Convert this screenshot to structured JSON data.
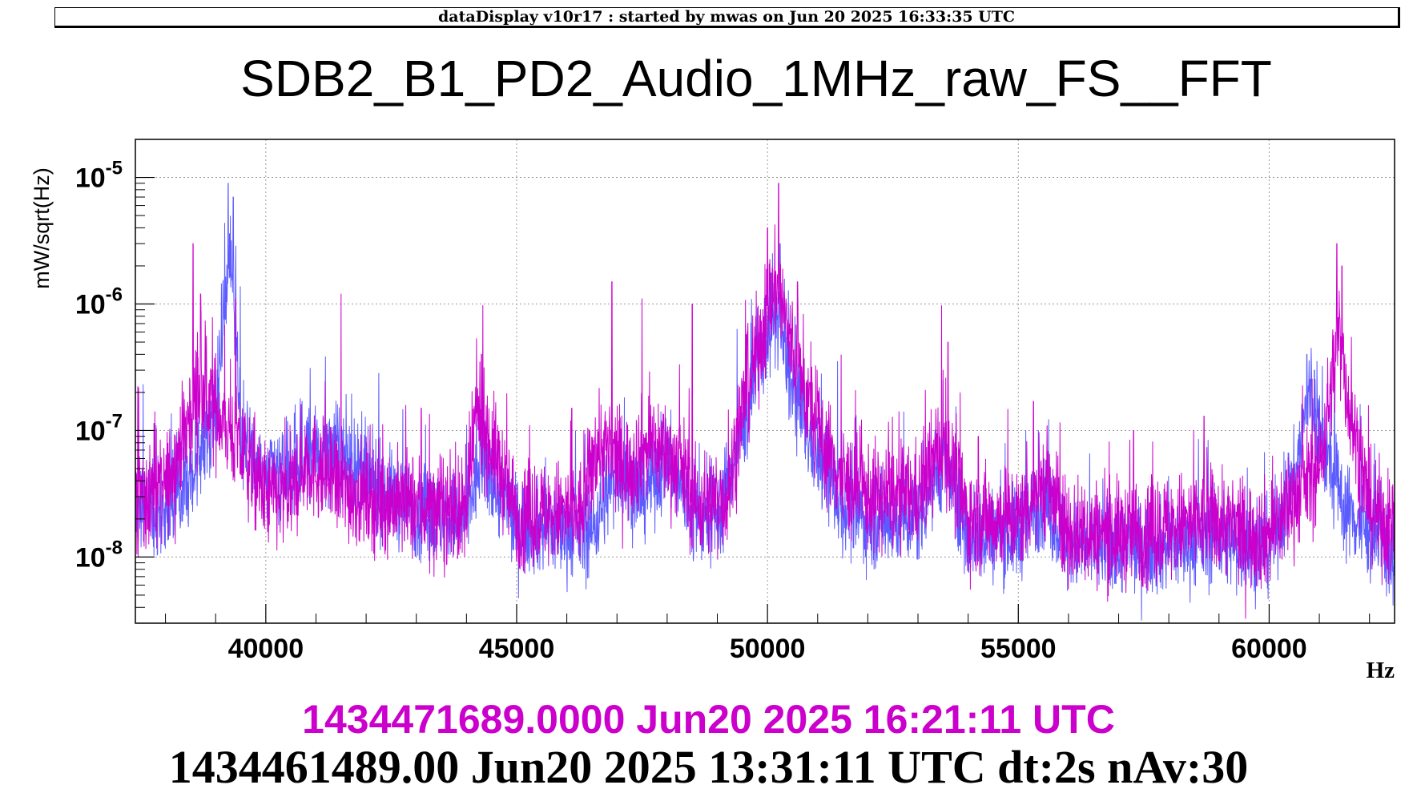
{
  "header": {
    "text": "dataDisplay v10r17 : started by mwas on Jun 20 2025 16:33:35 UTC"
  },
  "chart_data": {
    "type": "line",
    "title": "SDB2_B1_PD2_Audio_1MHz_raw_FS__FFT",
    "xlabel": "Hz",
    "ylabel": "mW/sqrt(Hz)",
    "xlim": [
      37400,
      62500
    ],
    "ylim": [
      3e-09,
      2e-05
    ],
    "yscale": "log",
    "grid": true,
    "xticks": [
      40000,
      45000,
      50000,
      55000,
      60000
    ],
    "xtick_labels": [
      "40000",
      "45000",
      "50000",
      "55000",
      "60000"
    ],
    "yticks": [
      1e-08,
      1e-07,
      1e-06,
      1e-05
    ],
    "ytick_base": "10",
    "ytick_exponents": [
      "-8",
      "-7",
      "-6",
      "-5"
    ],
    "series": [
      {
        "color": "#5b5bff",
        "noise_db": 0.35,
        "envelope": [
          [
            37400,
            2.3e-08
          ],
          [
            38000,
            2.6e-08
          ],
          [
            38500,
            4e-08
          ],
          [
            39000,
            1.5e-07
          ],
          [
            39200,
            1.2e-06
          ],
          [
            39300,
            3e-06
          ],
          [
            39500,
            1e-07
          ],
          [
            40000,
            4e-08
          ],
          [
            40500,
            4.5e-08
          ],
          [
            41000,
            7e-08
          ],
          [
            41400,
            7e-08
          ],
          [
            42000,
            4e-08
          ],
          [
            42500,
            3e-08
          ],
          [
            43000,
            2.4e-08
          ],
          [
            43500,
            2e-08
          ],
          [
            44000,
            2e-08
          ],
          [
            44300,
            6e-08
          ],
          [
            44700,
            3e-08
          ],
          [
            45000,
            1.8e-08
          ],
          [
            46000,
            1.6e-08
          ],
          [
            46500,
            1.6e-08
          ],
          [
            47000,
            5e-08
          ],
          [
            47500,
            3e-08
          ],
          [
            48000,
            6e-08
          ],
          [
            48500,
            2e-08
          ],
          [
            49000,
            2e-08
          ],
          [
            49500,
            1e-07
          ],
          [
            50000,
            6e-07
          ],
          [
            50200,
            8e-07
          ],
          [
            50500,
            2e-07
          ],
          [
            51000,
            6e-08
          ],
          [
            51500,
            2.5e-08
          ],
          [
            52000,
            2e-08
          ],
          [
            53000,
            2e-08
          ],
          [
            53500,
            6e-08
          ],
          [
            54000,
            1.5e-08
          ],
          [
            55000,
            1.5e-08
          ],
          [
            55500,
            3e-08
          ],
          [
            56000,
            1.2e-08
          ],
          [
            57000,
            1.2e-08
          ],
          [
            58000,
            1.2e-08
          ],
          [
            59000,
            1.5e-08
          ],
          [
            59500,
            1.2e-08
          ],
          [
            60000,
            1.2e-08
          ],
          [
            60500,
            4e-08
          ],
          [
            60800,
            2e-07
          ],
          [
            61200,
            5e-08
          ],
          [
            61500,
            2.5e-08
          ],
          [
            62000,
            1.5e-08
          ],
          [
            62500,
            1e-08
          ]
        ],
        "peaks": [
          [
            39250,
            9e-06
          ],
          [
            39350,
            7e-06
          ],
          [
            39150,
            1.5e-06
          ],
          [
            41000,
            1e-07
          ],
          [
            44200,
            1.2e-07
          ],
          [
            50100,
            2.5e-06
          ],
          [
            50250,
            3e-06
          ],
          [
            53500,
            2.5e-07
          ],
          [
            55400,
            1e-07
          ],
          [
            60750,
            4e-07
          ],
          [
            60900,
            3e-07
          ],
          [
            61300,
            3e-07
          ]
        ]
      },
      {
        "color": "#cc00cc",
        "noise_db": 0.4,
        "envelope": [
          [
            37400,
            2.8e-08
          ],
          [
            38000,
            3.5e-08
          ],
          [
            38400,
            1e-07
          ],
          [
            38600,
            2e-07
          ],
          [
            39000,
            1.5e-07
          ],
          [
            39500,
            7e-08
          ],
          [
            40000,
            3e-08
          ],
          [
            40500,
            3e-08
          ],
          [
            40800,
            6e-08
          ],
          [
            41000,
            5e-08
          ],
          [
            41500,
            3.5e-08
          ],
          [
            42000,
            3e-08
          ],
          [
            43000,
            2.5e-08
          ],
          [
            44000,
            2.2e-08
          ],
          [
            44200,
            1.5e-07
          ],
          [
            44600,
            6e-08
          ],
          [
            45000,
            2.2e-08
          ],
          [
            46300,
            2.2e-08
          ],
          [
            46600,
            8e-08
          ],
          [
            47200,
            5e-08
          ],
          [
            47700,
            8e-08
          ],
          [
            48300,
            5e-08
          ],
          [
            48600,
            2.5e-08
          ],
          [
            49200,
            3e-08
          ],
          [
            49500,
            1.5e-07
          ],
          [
            49900,
            6e-07
          ],
          [
            50200,
            1.5e-06
          ],
          [
            50500,
            4e-07
          ],
          [
            51000,
            1e-07
          ],
          [
            51500,
            4e-08
          ],
          [
            52000,
            3e-08
          ],
          [
            53000,
            3e-08
          ],
          [
            53500,
            8e-08
          ],
          [
            54000,
            2e-08
          ],
          [
            55000,
            2e-08
          ],
          [
            55500,
            4e-08
          ],
          [
            56000,
            1.6e-08
          ],
          [
            57000,
            1.5e-08
          ],
          [
            58000,
            1.7e-08
          ],
          [
            59000,
            2e-08
          ],
          [
            59500,
            1.5e-08
          ],
          [
            60000,
            1.5e-08
          ],
          [
            60500,
            3e-08
          ],
          [
            61000,
            5e-08
          ],
          [
            61400,
            6e-07
          ],
          [
            61600,
            1.5e-07
          ],
          [
            62000,
            2.5e-08
          ],
          [
            62500,
            1.5e-08
          ]
        ],
        "peaks": [
          [
            38550,
            3e-06
          ],
          [
            38700,
            1.2e-06
          ],
          [
            39400,
            1.1e-06
          ],
          [
            41500,
            1.2e-06
          ],
          [
            43100,
            1.5e-07
          ],
          [
            44300,
            4e-07
          ],
          [
            46100,
            1.5e-07
          ],
          [
            46900,
            1.5e-06
          ],
          [
            47500,
            1.1e-06
          ],
          [
            48500,
            1e-06
          ],
          [
            49600,
            6e-07
          ],
          [
            50000,
            4e-06
          ],
          [
            50220,
            9e-06
          ],
          [
            50600,
            1.5e-06
          ],
          [
            51000,
            1.7e-07
          ],
          [
            53500,
            3e-07
          ],
          [
            53600,
            5e-07
          ],
          [
            54200,
            9e-08
          ],
          [
            55300,
            1.7e-07
          ],
          [
            57300,
            1e-07
          ],
          [
            58700,
            1.3e-07
          ],
          [
            61350,
            3e-06
          ],
          [
            61450,
            2e-06
          ]
        ]
      }
    ],
    "legend": [
      {
        "text": "1434471689.0000 Jun20 2025 16:21:11 UTC",
        "color": "#cc00cc"
      },
      {
        "text": "1434461489.00 Jun20 2025 13:31:11 UTC dt:2s nAv:30",
        "color": "#000000"
      }
    ]
  }
}
